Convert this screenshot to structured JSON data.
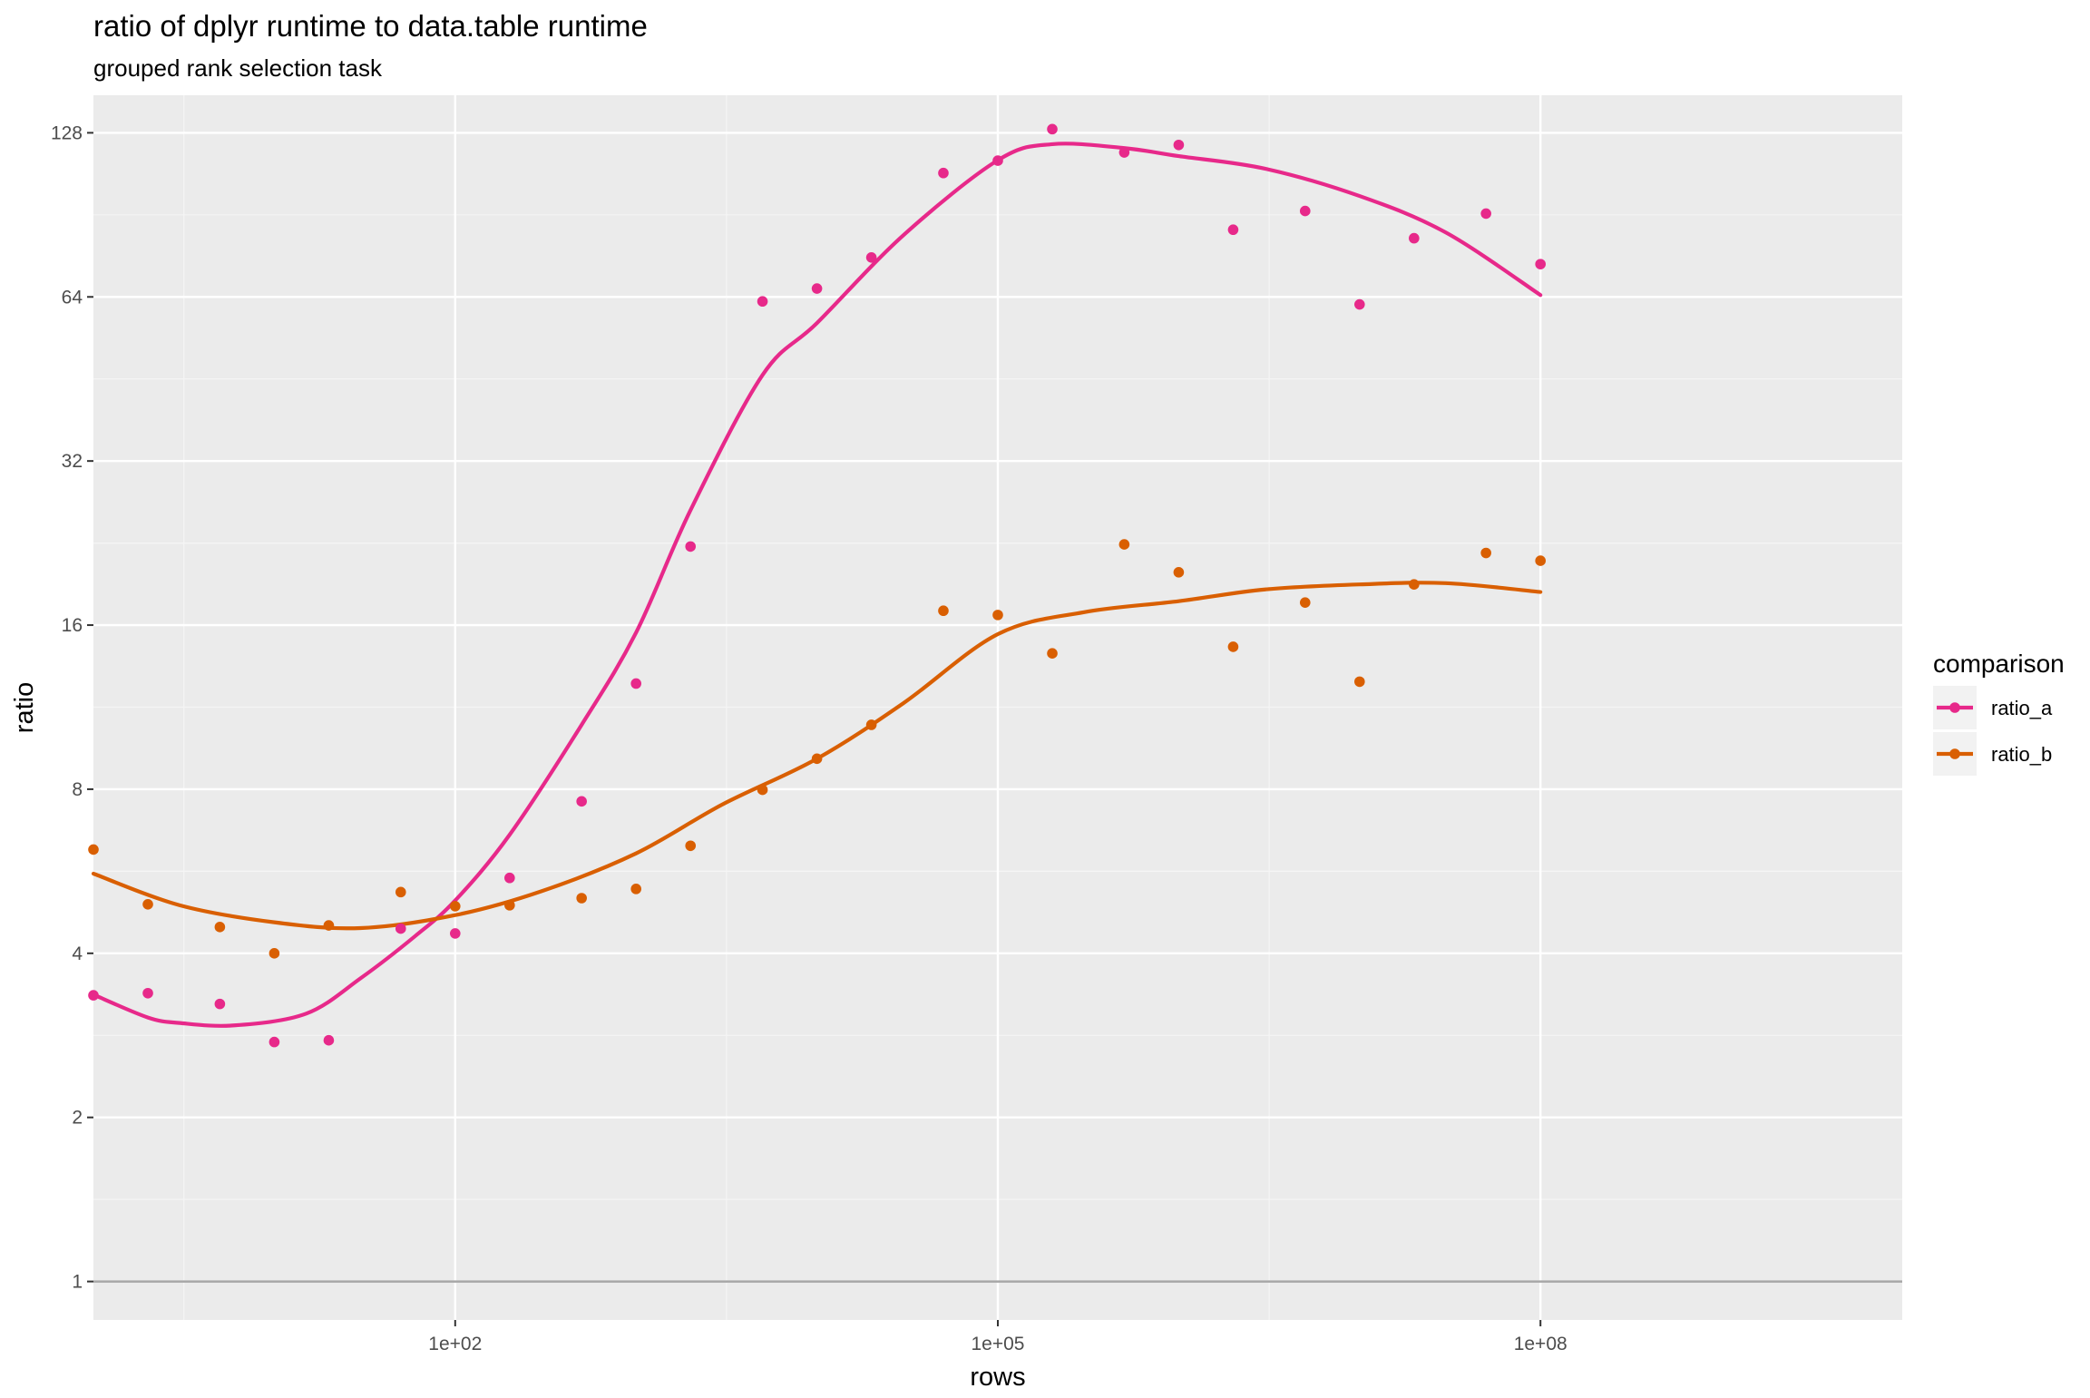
{
  "chart_data": {
    "type": "scatter",
    "title": "ratio of dplyr runtime to data.table runtime",
    "subtitle": "grouped rank selection task",
    "xlabel": "rows",
    "ylabel": "ratio",
    "x_scale": "log10",
    "y_scale": "log2",
    "xlim": [
      1,
      10000000000
    ],
    "ylim": [
      0.85,
      150
    ],
    "x_ticks": [
      {
        "value": 100,
        "label": "1e+02"
      },
      {
        "value": 100000,
        "label": "1e+05"
      },
      {
        "value": 100000000,
        "label": "1e+08"
      }
    ],
    "y_ticks": [
      {
        "value": 1,
        "label": "1"
      },
      {
        "value": 2,
        "label": "2"
      },
      {
        "value": 4,
        "label": "4"
      },
      {
        "value": 8,
        "label": "8"
      },
      {
        "value": 16,
        "label": "16"
      },
      {
        "value": 32,
        "label": "32"
      },
      {
        "value": 64,
        "label": "64"
      },
      {
        "value": 128,
        "label": "128"
      }
    ],
    "reference_line": 1,
    "grid": true,
    "legend": {
      "title": "comparison",
      "position": "right"
    },
    "series": [
      {
        "name": "ratio_a",
        "color": "#E7298A",
        "points": [
          [
            1,
            3.35
          ],
          [
            2,
            3.38
          ],
          [
            5,
            3.23
          ],
          [
            10,
            2.75
          ],
          [
            20,
            2.77
          ],
          [
            50,
            4.44
          ],
          [
            100,
            4.35
          ],
          [
            200,
            5.5
          ],
          [
            500,
            7.6
          ],
          [
            1000,
            12.5
          ],
          [
            2000,
            22.3
          ],
          [
            5000,
            62.8
          ],
          [
            10000,
            66.3
          ],
          [
            20000,
            75.6
          ],
          [
            50000,
            108
          ],
          [
            100000,
            113.8
          ],
          [
            200000,
            130
          ],
          [
            500000,
            117.8
          ],
          [
            1000000,
            121.6
          ],
          [
            2000000,
            85
          ],
          [
            5000000,
            92
          ],
          [
            10000000,
            62
          ],
          [
            20000000,
            82
          ],
          [
            50000000,
            91
          ],
          [
            100000000,
            73.5
          ]
        ],
        "smooth": [
          [
            1,
            3.36
          ],
          [
            2,
            3.05
          ],
          [
            3,
            2.98
          ],
          [
            6,
            2.95
          ],
          [
            15,
            3.1
          ],
          [
            30,
            3.6
          ],
          [
            60,
            4.3
          ],
          [
            100,
            5.0
          ],
          [
            200,
            6.6
          ],
          [
            500,
            10.5
          ],
          [
            1000,
            15.5
          ],
          [
            2000,
            26
          ],
          [
            5000,
            46
          ],
          [
            10000,
            57.3
          ],
          [
            30000,
            83
          ],
          [
            100000,
            114
          ],
          [
            200000,
            122
          ],
          [
            500000,
            120
          ],
          [
            1000000,
            116
          ],
          [
            3000000,
            110
          ],
          [
            10000000,
            98
          ],
          [
            30000000,
            84
          ],
          [
            100000000,
            64.5
          ]
        ]
      },
      {
        "name": "ratio_b",
        "color": "#D95F02",
        "points": [
          [
            1,
            6.2
          ],
          [
            2,
            4.92
          ],
          [
            5,
            4.47
          ],
          [
            10,
            4.0
          ],
          [
            20,
            4.5
          ],
          [
            50,
            5.18
          ],
          [
            100,
            4.88
          ],
          [
            200,
            4.9
          ],
          [
            500,
            5.05
          ],
          [
            1000,
            5.25
          ],
          [
            2000,
            6.3
          ],
          [
            5000,
            7.98
          ],
          [
            10000,
            9.1
          ],
          [
            20000,
            10.5
          ],
          [
            50000,
            17.0
          ],
          [
            100000,
            16.7
          ],
          [
            200000,
            14.2
          ],
          [
            500000,
            22.5
          ],
          [
            1000000,
            20.0
          ],
          [
            2000000,
            14.6
          ],
          [
            5000000,
            17.6
          ],
          [
            10000000,
            12.6
          ],
          [
            20000000,
            19.0
          ],
          [
            50000000,
            21.7
          ],
          [
            100000000,
            21.0
          ]
        ],
        "smooth": [
          [
            1,
            5.6
          ],
          [
            3,
            4.9
          ],
          [
            10,
            4.56
          ],
          [
            30,
            4.45
          ],
          [
            100,
            4.7
          ],
          [
            300,
            5.2
          ],
          [
            1000,
            6.1
          ],
          [
            3000,
            7.5
          ],
          [
            10000,
            9.1
          ],
          [
            30000,
            11.5
          ],
          [
            100000,
            15.4
          ],
          [
            300000,
            16.9
          ],
          [
            1000000,
            17.7
          ],
          [
            3000000,
            18.6
          ],
          [
            10000000,
            19.0
          ],
          [
            30000000,
            19.1
          ],
          [
            100000000,
            18.4
          ]
        ]
      }
    ]
  }
}
